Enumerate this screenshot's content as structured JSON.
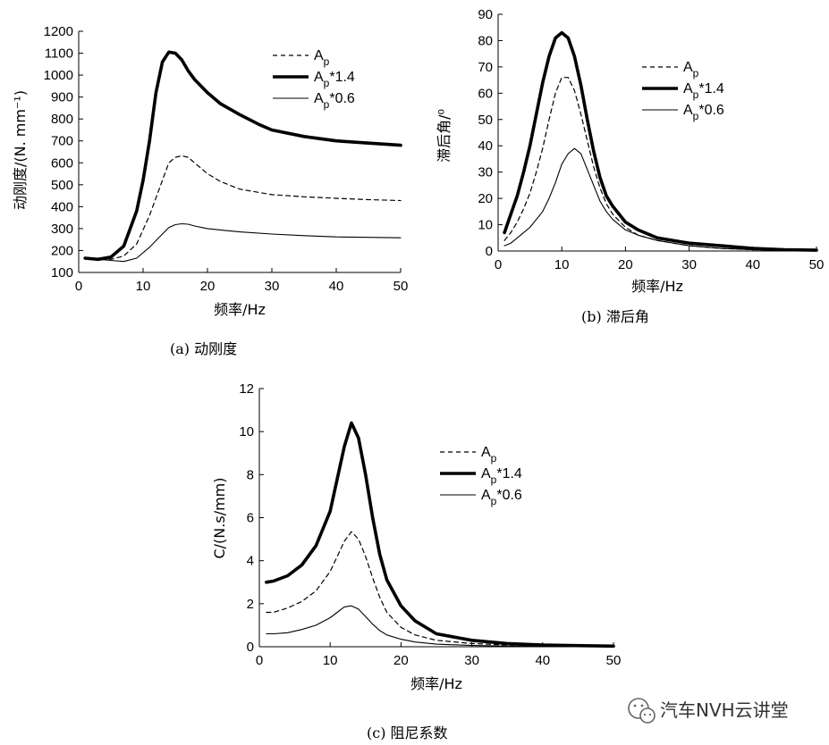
{
  "chart_data": [
    {
      "id": "a",
      "type": "line",
      "caption": "(a)  动刚度",
      "xlabel": "频率/Hz",
      "ylabel": "动刚度/(N. mm⁻¹)",
      "xlim": [
        0,
        50
      ],
      "ylim": [
        100,
        1200
      ],
      "xticks": [
        0,
        10,
        20,
        30,
        40,
        50
      ],
      "yticks": [
        100,
        200,
        300,
        400,
        500,
        600,
        700,
        800,
        900,
        1000,
        1100,
        1200
      ],
      "legend_position": "top-right",
      "grid": false,
      "series": [
        {
          "name": "Ap",
          "base": "A",
          "sub": "p",
          "suffix": "",
          "style": "dashed",
          "x": [
            1,
            3,
            5,
            7,
            9,
            11,
            13,
            14,
            15,
            16,
            17,
            18,
            20,
            22,
            25,
            30,
            35,
            40,
            45,
            50
          ],
          "y": [
            165,
            160,
            160,
            175,
            230,
            360,
            520,
            600,
            625,
            632,
            625,
            600,
            550,
            515,
            480,
            455,
            445,
            438,
            432,
            428
          ]
        },
        {
          "name": "Ap*1.4",
          "base": "A",
          "sub": "p",
          "suffix": "*1.4",
          "style": "thick",
          "x": [
            1,
            3,
            5,
            7,
            9,
            10,
            11,
            12,
            13,
            14,
            15,
            16,
            17,
            18,
            20,
            22,
            25,
            28,
            30,
            35,
            40,
            45,
            50
          ],
          "y": [
            165,
            160,
            170,
            220,
            380,
            520,
            700,
            920,
            1060,
            1105,
            1100,
            1070,
            1020,
            980,
            920,
            870,
            820,
            775,
            750,
            720,
            700,
            690,
            680
          ]
        },
        {
          "name": "Ap*0.6",
          "base": "A",
          "sub": "p",
          "suffix": "*0.6",
          "style": "thin",
          "x": [
            1,
            3,
            5,
            7,
            9,
            11,
            13,
            14,
            15,
            16,
            17,
            18,
            20,
            25,
            30,
            35,
            40,
            45,
            50
          ],
          "y": [
            165,
            160,
            155,
            150,
            165,
            215,
            275,
            305,
            318,
            322,
            320,
            312,
            300,
            285,
            275,
            268,
            262,
            260,
            258
          ]
        }
      ]
    },
    {
      "id": "b",
      "type": "line",
      "caption": "(b)  滞后角",
      "xlabel": "频率/Hz",
      "ylabel": "滞后角/⁰",
      "xlim": [
        0,
        50
      ],
      "ylim": [
        0,
        90
      ],
      "xticks": [
        0,
        10,
        20,
        30,
        40,
        50
      ],
      "yticks": [
        0,
        10,
        20,
        30,
        40,
        50,
        60,
        70,
        80,
        90
      ],
      "legend_position": "top-right",
      "grid": false,
      "series": [
        {
          "name": "Ap",
          "base": "A",
          "sub": "p",
          "suffix": "",
          "style": "dashed",
          "x": [
            1,
            2,
            3,
            4,
            5,
            6,
            7,
            8,
            9,
            10,
            11,
            12,
            13,
            14,
            15,
            16,
            17,
            18,
            20,
            22,
            25,
            30,
            35,
            40,
            45,
            50
          ],
          "y": [
            4,
            7,
            11,
            16,
            22,
            30,
            39,
            50,
            60,
            66,
            66,
            61,
            52,
            42,
            32,
            24,
            18,
            14,
            9,
            6,
            4,
            2,
            1,
            0.5,
            0.3,
            0.2
          ]
        },
        {
          "name": "Ap*1.4",
          "base": "A",
          "sub": "p",
          "suffix": "*1.4",
          "style": "thick",
          "x": [
            1,
            2,
            3,
            4,
            5,
            6,
            7,
            8,
            9,
            10,
            11,
            12,
            13,
            14,
            15,
            16,
            17,
            18,
            20,
            22,
            25,
            30,
            35,
            40,
            45,
            50
          ],
          "y": [
            7,
            14,
            21,
            30,
            40,
            52,
            64,
            74,
            81,
            83,
            81,
            74,
            63,
            50,
            38,
            28,
            21,
            17,
            11,
            8,
            5,
            3,
            2,
            1,
            0.5,
            0.3
          ]
        },
        {
          "name": "Ap*0.6",
          "base": "A",
          "sub": "p",
          "suffix": "*0.6",
          "style": "thin",
          "x": [
            1,
            2,
            3,
            4,
            5,
            6,
            7,
            8,
            9,
            10,
            11,
            12,
            13,
            14,
            15,
            16,
            17,
            18,
            20,
            22,
            25,
            30,
            35,
            40,
            45,
            50
          ],
          "y": [
            2,
            3,
            5,
            7,
            9,
            12,
            15,
            20,
            26,
            33,
            37,
            39,
            37,
            31,
            25,
            19,
            15,
            12,
            8,
            6,
            4,
            2,
            1,
            0.5,
            0.3,
            0.2
          ]
        }
      ]
    },
    {
      "id": "c",
      "type": "line",
      "caption": "(c)  阻尼系数",
      "xlabel": "频率/Hz",
      "ylabel": "C/(N.s/mm)",
      "xlim": [
        0,
        50
      ],
      "ylim": [
        0,
        12
      ],
      "xticks": [
        0,
        10,
        20,
        30,
        40,
        50
      ],
      "yticks": [
        0,
        2,
        4,
        6,
        8,
        10,
        12
      ],
      "legend_position": "top-right",
      "grid": false,
      "series": [
        {
          "name": "Ap",
          "base": "A",
          "sub": "p",
          "suffix": "",
          "style": "dashed",
          "x": [
            1,
            2,
            4,
            6,
            8,
            10,
            11,
            12,
            13,
            14,
            15,
            16,
            17,
            18,
            20,
            22,
            25,
            30,
            35,
            40,
            50
          ],
          "y": [
            1.6,
            1.6,
            1.8,
            2.1,
            2.6,
            3.5,
            4.2,
            4.9,
            5.35,
            5.0,
            4.2,
            3.2,
            2.3,
            1.6,
            0.9,
            0.55,
            0.3,
            0.15,
            0.08,
            0.04,
            0.02
          ]
        },
        {
          "name": "Ap*1.4",
          "base": "A",
          "sub": "p",
          "suffix": "*1.4",
          "style": "thick",
          "x": [
            1,
            2,
            4,
            6,
            8,
            10,
            11,
            12,
            13,
            14,
            15,
            16,
            17,
            18,
            20,
            22,
            25,
            30,
            35,
            40,
            50
          ],
          "y": [
            3.0,
            3.05,
            3.3,
            3.8,
            4.7,
            6.3,
            7.8,
            9.3,
            10.4,
            9.7,
            8.0,
            6.0,
            4.3,
            3.1,
            1.9,
            1.2,
            0.6,
            0.3,
            0.15,
            0.08,
            0.03
          ]
        },
        {
          "name": "Ap*0.6",
          "base": "A",
          "sub": "p",
          "suffix": "*0.6",
          "style": "thin",
          "x": [
            1,
            2,
            4,
            6,
            8,
            10,
            11,
            12,
            13,
            14,
            15,
            16,
            17,
            18,
            20,
            22,
            25,
            30,
            35,
            40,
            50
          ],
          "y": [
            0.6,
            0.6,
            0.65,
            0.8,
            1.0,
            1.35,
            1.6,
            1.85,
            1.9,
            1.75,
            1.4,
            1.05,
            0.75,
            0.55,
            0.35,
            0.22,
            0.12,
            0.06,
            0.03,
            0.02,
            0.01
          ]
        }
      ]
    }
  ],
  "watermark": {
    "text": "汽车NVH云讲堂",
    "icon": "wechat-icon"
  }
}
